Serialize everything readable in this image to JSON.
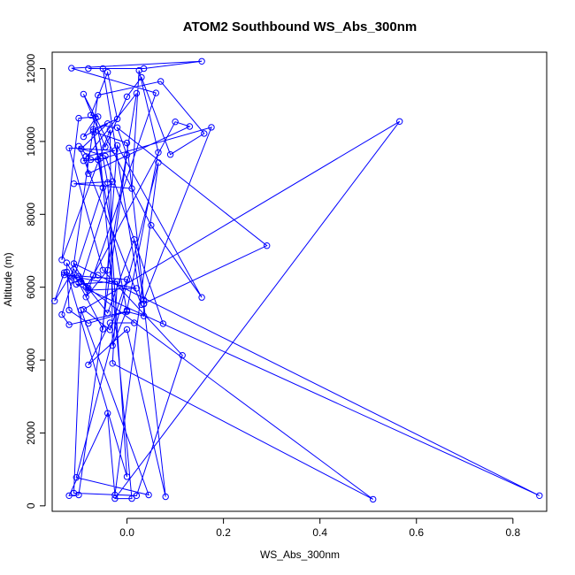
{
  "chart_data": {
    "type": "line",
    "title": "ATOM2 Southbound WS_Abs_300nm",
    "xlabel": "WS_Abs_300nm",
    "ylabel": "Altitude (m)",
    "xlim": [
      -0.155,
      0.87
    ],
    "ylim": [
      -150,
      12450
    ],
    "xticks": [
      0.0,
      0.2,
      0.4,
      0.6,
      0.8
    ],
    "xtick_labels": [
      "0.0",
      "0.2",
      "0.4",
      "0.6",
      "0.8"
    ],
    "yticks": [
      0,
      2000,
      4000,
      6000,
      8000,
      10000,
      12000
    ],
    "ytick_labels": [
      "0",
      "2000",
      "4000",
      "6000",
      "8000",
      "10000",
      "12000"
    ],
    "grid": false,
    "legend": "none",
    "color": "#0000ff",
    "marker": "open-circle",
    "series": [
      {
        "x": [
          0.015,
          -0.035,
          -0.08,
          0.0,
          0.08,
          0.035,
          0.035,
          0.0,
          -0.08,
          -0.12,
          -0.125,
          -0.1,
          -0.05,
          -0.02,
          0.155,
          0.05,
          -0.09,
          -0.045,
          0.0,
          0.03,
          0.09,
          0.16,
          0.07,
          -0.06,
          -0.115,
          -0.13,
          -0.15,
          -0.11,
          -0.08,
          -0.04,
          0.015,
          0.035,
          0.29,
          -0.02,
          0.0,
          -0.1,
          -0.12,
          -0.04,
          -0.025,
          0.065,
          -0.105,
          0.045,
          -0.095,
          -0.11,
          0.02,
          0.115,
          -0.05,
          -0.12,
          -0.025,
          -0.085,
          -0.08,
          0.13,
          0.1,
          -0.07,
          -0.085,
          -0.1,
          -0.095,
          -0.03,
          -0.11,
          0.01,
          0.025,
          0.065,
          0.0,
          -0.03,
          -0.035,
          -0.135,
          -0.1,
          -0.06,
          -0.075,
          -0.04,
          -0.02,
          -0.07,
          0.0,
          -0.12,
          -0.135,
          -0.05,
          -0.07,
          0.0,
          0.035,
          0.175,
          -0.06,
          -0.09,
          0.02,
          -0.04,
          -0.085,
          0.06,
          -0.115,
          0.155,
          0.035,
          -0.08,
          -0.05,
          0.03,
          -0.1,
          -0.075,
          -0.055,
          0.01,
          -0.025,
          0.565,
          -0.09,
          -0.035,
          0.0,
          -0.13,
          0.02,
          -0.08,
          -0.11,
          -0.06,
          0.855,
          -0.105,
          -0.02,
          -0.03,
          0.51,
          -0.125,
          0.0,
          -0.04,
          -0.065,
          -0.09,
          -0.04,
          -0.095,
          -0.045,
          0.075
        ],
        "y": [
          5020,
          5020,
          3870,
          4840,
          250,
          5540,
          5210,
          5330,
          5010,
          5370,
          6670,
          6120,
          4850,
          9890,
          5720,
          7700,
          11300,
          9850,
          11230,
          11760,
          9640,
          10220,
          11650,
          11270,
          6190,
          6400,
          5620,
          6490,
          5970,
          5290,
          7310,
          5550,
          7140,
          10380,
          9630,
          300,
          280,
          2540,
          300,
          9420,
          780,
          300,
          5370,
          350,
          280,
          4130,
          6470,
          9820,
          9750,
          9590,
          9120,
          10410,
          10540,
          6320,
          6000,
          6300,
          6150,
          8900,
          8840,
          8710,
          11950,
          9700,
          5370,
          4400,
          10320,
          6750,
          10640,
          10680,
          10720,
          11900,
          10620,
          10330,
          5340,
          4970,
          5250,
          8730,
          10270,
          9960,
          5650,
          10390,
          9500,
          9470,
          11320,
          6470,
          5730,
          11330,
          12010,
          12200,
          12000,
          12000,
          12000,
          5520,
          9870,
          9500,
          9540,
          200,
          200,
          10550,
          5390,
          4830,
          6210,
          6340,
          5970,
          5920,
          6650,
          6330,
          280,
          6080,
          6160,
          3910,
          180,
          6420,
          800,
          8870,
          10650,
          10130,
          10490,
          9800,
          9600,
          5000
        ]
      }
    ]
  }
}
